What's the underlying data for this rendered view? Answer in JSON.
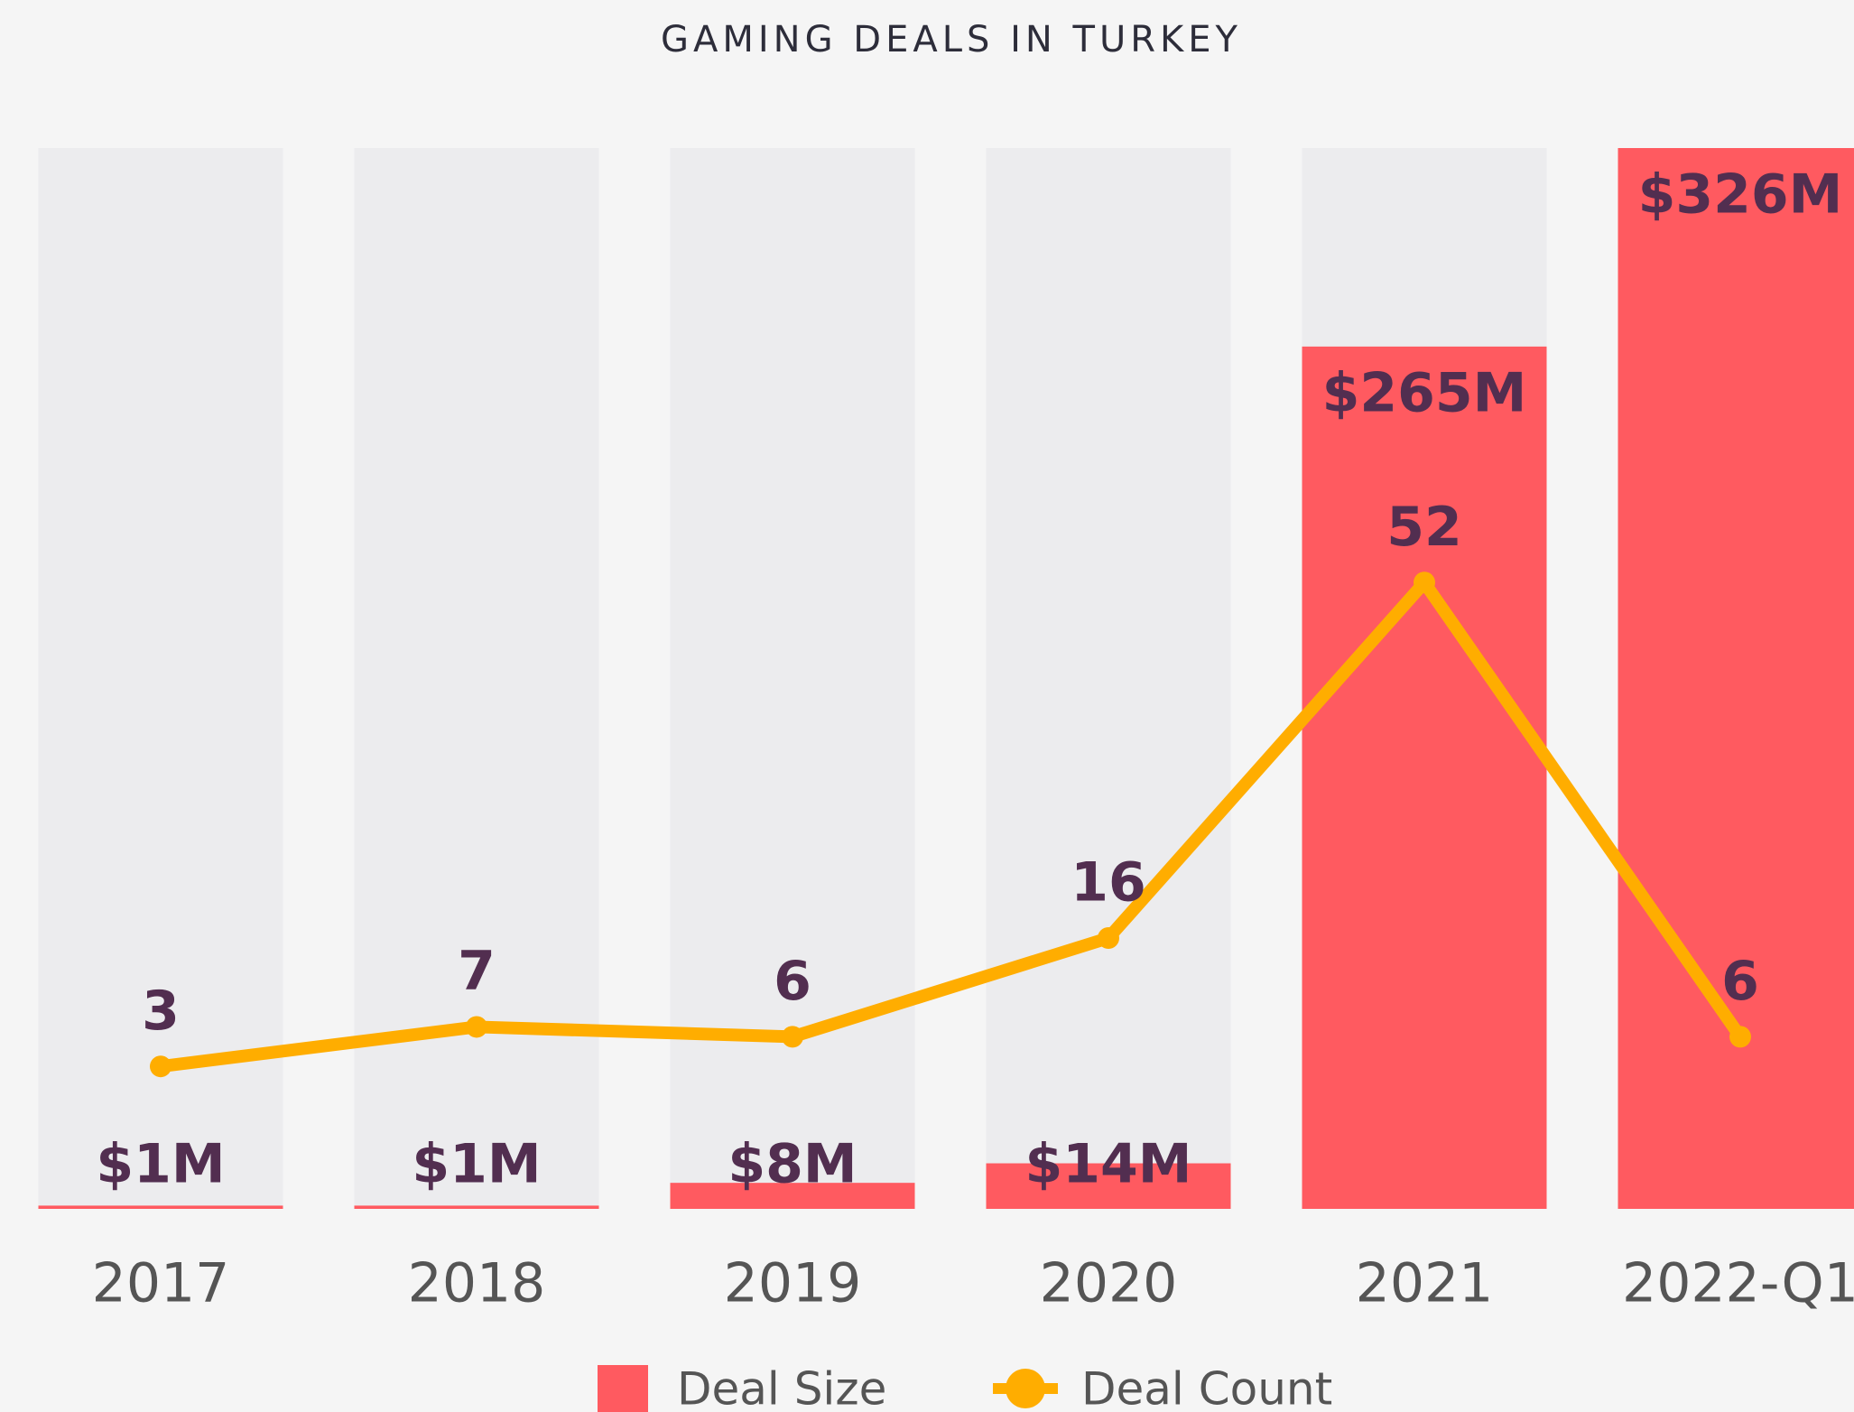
{
  "chart_data": {
    "type": "bar_line",
    "title": "GAMING DEALS IN TURKEY",
    "categories": [
      "2017",
      "2018",
      "2019",
      "2020",
      "2021",
      "2022-Q1"
    ],
    "series": [
      {
        "name": "Deal Size",
        "type": "bar",
        "color": "#ff5a60",
        "values": [
          1,
          1,
          8,
          14,
          265,
          326
        ],
        "value_labels": [
          "$1M",
          "$1M",
          "$8M",
          "$14M",
          "$265M",
          "$326M"
        ]
      },
      {
        "name": "Deal Count",
        "type": "line",
        "axis": "y2",
        "color": "#ffad00",
        "values": [
          3,
          7,
          6,
          16,
          52,
          6
        ]
      }
    ],
    "ylim": [
      0,
      326
    ],
    "y2lim": [
      0,
      96
    ],
    "legend": "bottom"
  }
}
